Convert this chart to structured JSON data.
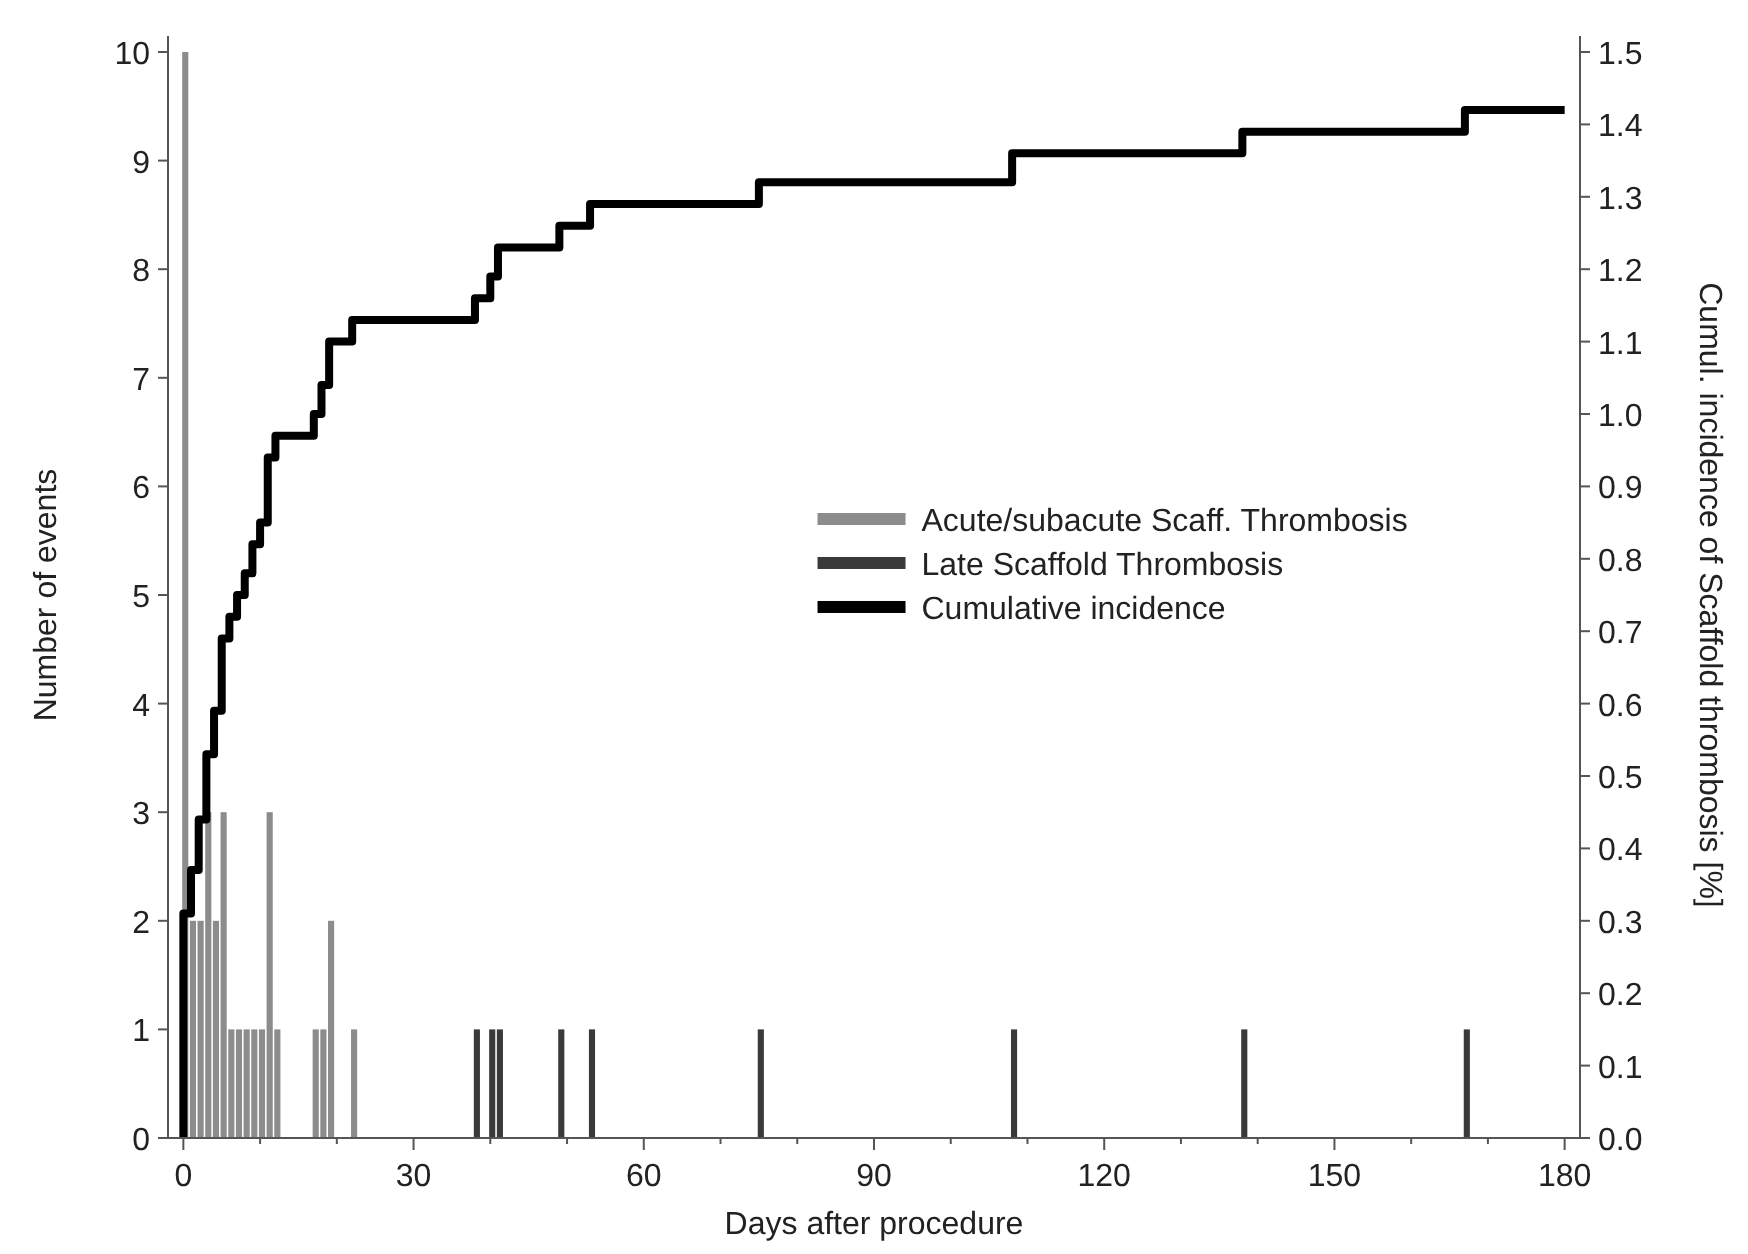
{
  "chart_data": {
    "type": "bar",
    "xlabel": "Days after procedure",
    "ylabel": "Number of events",
    "y2label": "Cumul. incidence of Scaffold thrombosis [%]",
    "xlim": [
      -2,
      182
    ],
    "xticks": [
      0,
      {
        "value": 10,
        "label": null
      },
      {
        "value": 20,
        "label": null
      },
      30,
      {
        "value": 40,
        "label": null
      },
      {
        "value": 50,
        "label": null
      },
      60,
      {
        "value": 70,
        "label": null
      },
      {
        "value": 80,
        "label": null
      },
      90,
      {
        "value": 100,
        "label": null
      },
      {
        "value": 110,
        "label": null
      },
      120,
      {
        "value": 130,
        "label": null
      },
      {
        "value": 140,
        "label": null
      },
      150,
      {
        "value": 160,
        "label": null
      },
      {
        "value": 170,
        "label": null
      },
      180
    ],
    "ylim": [
      0,
      10
    ],
    "yticks": [
      0,
      1,
      2,
      3,
      4,
      5,
      6,
      7,
      8,
      9,
      10
    ],
    "y2lim": [
      0,
      1.5
    ],
    "y2ticks": [
      {
        "value": 0,
        "label": "0.0"
      },
      0.1,
      0.2,
      0.3,
      0.4,
      0.5,
      0.6,
      0.7,
      0.8,
      0.9,
      {
        "value": 1,
        "label": "1.0"
      },
      1.1,
      1.2,
      1.3,
      1.4,
      1.5
    ],
    "grid": false,
    "legend": "right",
    "series": [
      {
        "name": "Acute/subacute Scaff. Thrombosis",
        "color": "#8c8c8c",
        "x": [
          0,
          1,
          2,
          3,
          4,
          5,
          6,
          7,
          8,
          9,
          10,
          11,
          12,
          17,
          18,
          19,
          22
        ],
        "values": [
          10,
          2,
          2,
          3,
          2,
          3,
          1,
          1,
          1,
          1,
          1,
          3,
          1,
          1,
          1,
          2,
          1
        ]
      },
      {
        "name": "Late Scaffold Thrombosis",
        "color": "#3a3a3a",
        "x": [
          38,
          40,
          41,
          49,
          53,
          75,
          108,
          138,
          167
        ],
        "values": [
          1,
          1,
          1,
          1,
          1,
          1,
          1,
          1,
          1
        ]
      },
      {
        "name": "Cumulative incidence",
        "type": "step",
        "axis": "y2",
        "color": "#000000",
        "x": [
          0,
          0,
          1,
          2,
          3,
          4,
          5,
          6,
          7,
          8,
          9,
          10,
          11,
          12,
          17,
          18,
          19,
          22,
          38,
          40,
          41,
          49,
          53,
          75,
          108,
          138,
          167,
          180
        ],
        "values": [
          0,
          0.31,
          0.37,
          0.44,
          0.53,
          0.59,
          0.69,
          0.72,
          0.75,
          0.78,
          0.82,
          0.85,
          0.94,
          0.97,
          1.0,
          1.04,
          1.1,
          1.13,
          1.16,
          1.19,
          1.23,
          1.26,
          1.29,
          1.32,
          1.36,
          1.39,
          1.42,
          1.42
        ]
      }
    ]
  }
}
